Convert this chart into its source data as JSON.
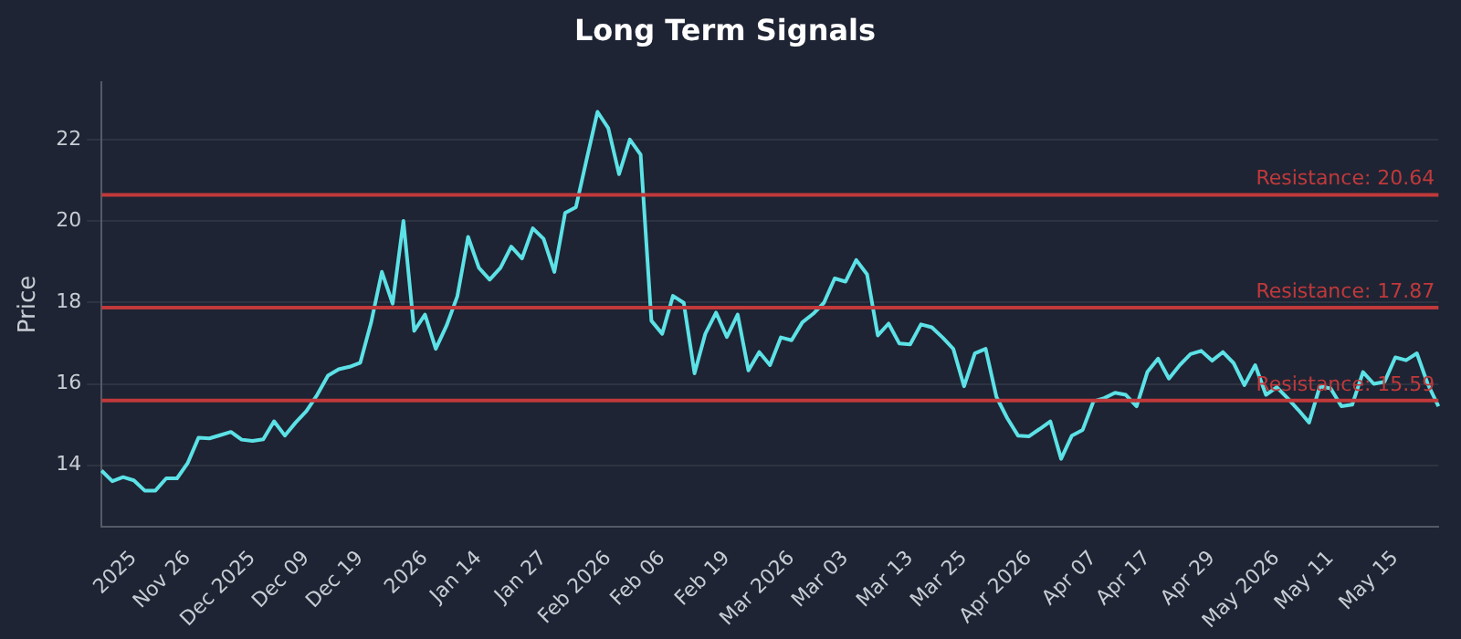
{
  "chart_data": {
    "type": "line",
    "title": "Long Term Signals",
    "ylabel": "Price",
    "categories": [
      null,
      null,
      null,
      "2025",
      null,
      null,
      null,
      null,
      "Nov 26",
      null,
      null,
      null,
      null,
      null,
      "Dec 2025",
      null,
      null,
      null,
      null,
      "Dec 09",
      null,
      null,
      null,
      null,
      "Dec 19",
      null,
      null,
      null,
      null,
      null,
      "2026",
      null,
      null,
      null,
      null,
      "Jan 14",
      null,
      null,
      null,
      null,
      null,
      "Jan 27",
      null,
      null,
      null,
      null,
      null,
      "Feb 2026",
      null,
      null,
      null,
      null,
      "Feb 06",
      null,
      null,
      null,
      null,
      null,
      "Feb 19",
      null,
      null,
      null,
      null,
      null,
      "Mar 2026",
      null,
      null,
      null,
      null,
      "Mar 03",
      null,
      null,
      null,
      null,
      null,
      "Mar 13",
      null,
      null,
      null,
      null,
      "Mar 25",
      null,
      null,
      null,
      null,
      null,
      "Apr 2026",
      null,
      null,
      null,
      null,
      null,
      "Apr 07",
      null,
      null,
      null,
      null,
      "Apr 17",
      null,
      null,
      null,
      null,
      null,
      "Apr 29",
      null,
      null,
      null,
      null,
      null,
      "May 2026",
      null,
      null,
      null,
      null,
      "May 11",
      null,
      null,
      null,
      null,
      null,
      "May 15",
      null,
      null,
      null,
      null
    ],
    "series": [
      {
        "color": "#5ce1e6",
        "values": [
          13.87,
          13.61,
          13.71,
          13.63,
          13.38,
          13.38,
          13.68,
          13.68,
          14.06,
          14.68,
          14.66,
          14.74,
          14.82,
          14.63,
          14.6,
          14.64,
          15.08,
          14.73,
          15.05,
          15.33,
          15.73,
          16.2,
          16.36,
          16.42,
          16.52,
          17.5,
          18.75,
          17.97,
          20.0,
          17.3,
          17.7,
          16.86,
          17.43,
          18.15,
          19.61,
          18.85,
          18.56,
          18.85,
          19.37,
          19.08,
          19.82,
          19.56,
          18.75,
          20.2,
          20.34,
          21.52,
          22.68,
          22.28,
          21.15,
          22.0,
          21.63,
          17.55,
          17.23,
          18.16,
          17.99,
          16.26,
          17.23,
          17.75,
          17.15,
          17.7,
          16.33,
          16.78,
          16.46,
          17.14,
          17.07,
          17.51,
          17.72,
          17.99,
          18.59,
          18.51,
          19.04,
          18.69,
          17.19,
          17.48,
          16.99,
          16.97,
          17.46,
          17.39,
          17.14,
          16.86,
          15.94,
          16.75,
          16.86,
          15.68,
          15.16,
          14.73,
          14.71,
          14.89,
          15.08,
          14.16,
          14.73,
          14.87,
          15.57,
          15.65,
          15.78,
          15.73,
          15.45,
          16.29,
          16.62,
          16.13,
          16.46,
          16.73,
          16.81,
          16.57,
          16.78,
          16.51,
          15.97,
          16.46,
          15.73,
          15.92,
          15.65,
          15.36,
          15.05,
          15.94,
          15.89,
          15.45,
          15.49,
          16.29,
          16.0,
          16.05,
          16.65,
          16.58,
          16.75,
          16.0,
          15.45
        ]
      }
    ],
    "ylim": [
      12.5,
      23.4
    ],
    "yticks": [
      14,
      16,
      18,
      20,
      22
    ],
    "grid": "y",
    "legend": false,
    "marker": "none",
    "line_style": "solid",
    "ref_lines": [
      {
        "axis": "y",
        "value": 20.64,
        "label": "Resistance: 20.64",
        "color": "#c0393b"
      },
      {
        "axis": "y",
        "value": 17.87,
        "label": "Resistance: 17.87",
        "color": "#c0393b"
      },
      {
        "axis": "y",
        "value": 15.59,
        "label": "Resistance: 15.59",
        "color": "#c0393b"
      }
    ]
  }
}
